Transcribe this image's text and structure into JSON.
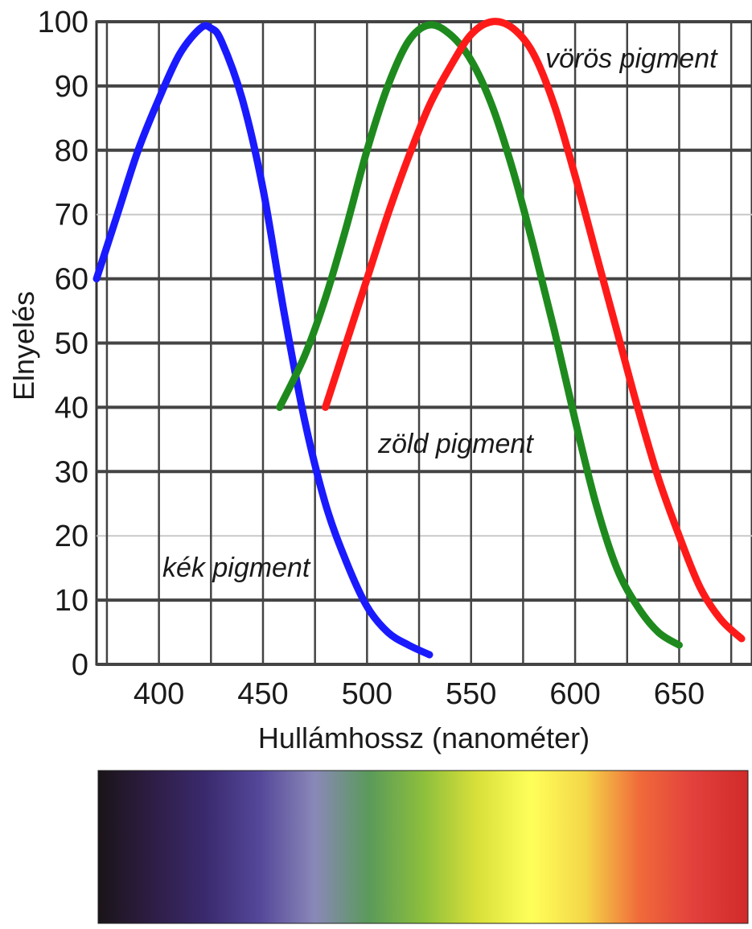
{
  "chart_data": {
    "type": "line",
    "title": "",
    "xlabel": "Hullámhossz (nanométer)",
    "ylabel": "Elnyelés",
    "xlim": [
      370,
      685
    ],
    "ylim": [
      0,
      100
    ],
    "x_ticks": [
      400,
      450,
      500,
      550,
      600,
      650
    ],
    "y_ticks": [
      0,
      10,
      20,
      30,
      40,
      50,
      60,
      70,
      80,
      90,
      100
    ],
    "grid": true,
    "series": [
      {
        "name": "kék pigment",
        "color": "#1a1aff",
        "x": [
          370,
          380,
          390,
          400,
          410,
          420,
          425,
          430,
          440,
          450,
          460,
          470,
          480,
          490,
          500,
          510,
          520,
          530
        ],
        "y": [
          60,
          70,
          80,
          88,
          95,
          99,
          99,
          97,
          88,
          74,
          55,
          38,
          25,
          16,
          9,
          5,
          3,
          1.5
        ]
      },
      {
        "name": "zöld pigment",
        "color": "#1e8a1e",
        "x": [
          458,
          470,
          480,
          490,
          500,
          510,
          520,
          530,
          540,
          550,
          560,
          570,
          580,
          590,
          600,
          610,
          620,
          630,
          640,
          650
        ],
        "y": [
          40,
          48,
          57,
          68,
          80,
          90,
          97,
          99.5,
          98,
          94,
          87,
          77,
          65,
          52,
          38,
          25,
          15,
          9,
          5,
          3
        ]
      },
      {
        "name": "vörös pigment",
        "color": "#ff1a1a",
        "x": [
          480,
          490,
          500,
          510,
          520,
          530,
          540,
          550,
          560,
          570,
          580,
          590,
          600,
          610,
          620,
          630,
          640,
          650,
          660,
          670,
          680
        ],
        "y": [
          40,
          50,
          60,
          70,
          79,
          87,
          93,
          98,
          100,
          99,
          95,
          87,
          76,
          64,
          52,
          40,
          29,
          20,
          12,
          7,
          4
        ]
      }
    ],
    "annotations": [
      {
        "text": "vörös pigment",
        "series": "vörös pigment"
      },
      {
        "text": "zöld pigment",
        "series": "zöld pigment"
      },
      {
        "text": "kék pigment",
        "series": "kék pigment"
      }
    ],
    "spectrum_colors": [
      "#1a1418",
      "#2e1d45",
      "#3a2a6e",
      "#55489a",
      "#8a88b8",
      "#5a9a5a",
      "#8cbf3c",
      "#d9e03a",
      "#ffff5a",
      "#f4d648",
      "#f06a3a",
      "#e2403c",
      "#d12a2a"
    ]
  }
}
